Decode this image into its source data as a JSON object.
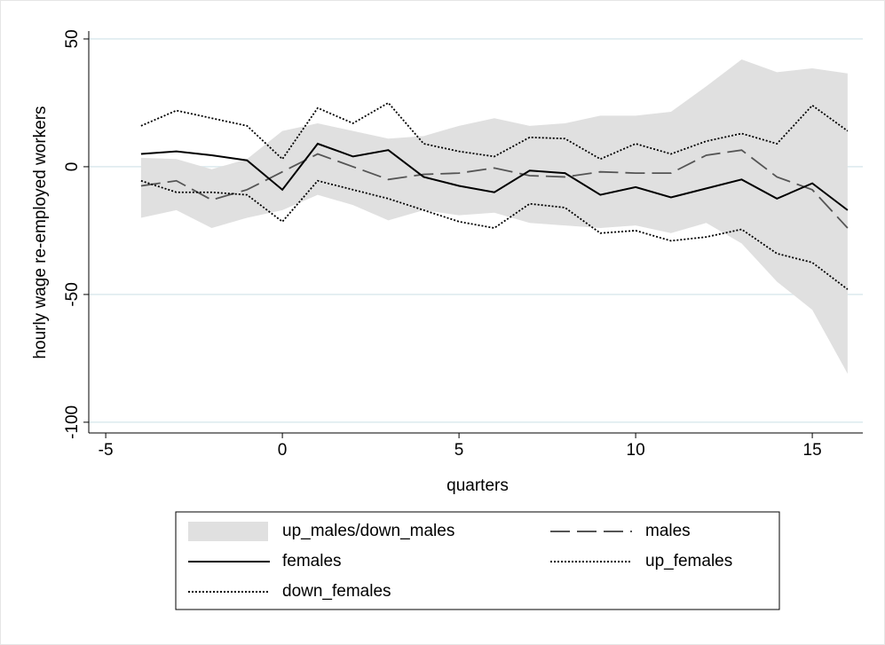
{
  "chart_data": {
    "type": "line",
    "x_label": "quarters",
    "y_label": "hourly wage re-employed workers",
    "x": [
      -4,
      -3,
      -2,
      -1,
      0,
      1,
      2,
      3,
      4,
      5,
      6,
      7,
      8,
      9,
      10,
      11,
      12,
      13,
      14,
      15,
      16
    ],
    "series": [
      {
        "name": "up_males/down_males",
        "type": "band",
        "color": "#e0e0e0",
        "upper": [
          3.5,
          3,
          -1,
          3,
          14,
          17,
          14,
          11,
          12,
          16,
          19,
          16,
          17,
          20,
          20,
          21.5,
          31.5,
          42,
          37,
          38.5,
          36.5
        ],
        "lower": [
          -20,
          -17,
          -24,
          -20,
          -17,
          -11,
          -15,
          -21,
          -17,
          -19,
          -18,
          -22,
          -23,
          -24,
          -23,
          -26,
          -22,
          -30,
          -45,
          -56,
          -81
        ]
      },
      {
        "name": "males",
        "type": "line",
        "color": "#555555",
        "dash": "long",
        "values": [
          -7.5,
          -5.5,
          -13,
          -9,
          -2,
          5,
          0,
          -5,
          -3,
          -2.5,
          -0.5,
          -3.5,
          -4,
          -2,
          -2.5,
          -2.5,
          4.5,
          6.5,
          -4,
          -9,
          -24
        ]
      },
      {
        "name": "females",
        "type": "line",
        "color": "#000000",
        "dash": "solid",
        "values": [
          5,
          6,
          4.5,
          2.5,
          -9,
          9,
          4,
          6.5,
          -4,
          -7.5,
          -10,
          -1.5,
          -2.5,
          -11,
          -8,
          -12,
          -8.5,
          -5,
          -12.5,
          -6.5,
          -17
        ]
      },
      {
        "name": "up_females",
        "type": "line",
        "color": "#000000",
        "dash": "dotted",
        "values": [
          16,
          22,
          19,
          16,
          3,
          23,
          17,
          25,
          9,
          6,
          4,
          11.5,
          11,
          3,
          9,
          5,
          10,
          13,
          9,
          24,
          14
        ]
      },
      {
        "name": "down_females",
        "type": "line",
        "color": "#000000",
        "dash": "dotted",
        "values": [
          -5.5,
          -10,
          -10,
          -11,
          -21.5,
          -5.5,
          -9,
          -12.5,
          -17,
          -21.5,
          -24,
          -14.5,
          -16,
          -26,
          -25,
          -29,
          -27.5,
          -24.5,
          -34,
          -37.5,
          -48
        ]
      }
    ],
    "xlim": [
      -5.48,
      16.43
    ],
    "xticks": [
      -5,
      0,
      5,
      10,
      15
    ],
    "ylim": [
      -104.2,
      53.1
    ],
    "yticks": [
      -100,
      -50,
      0,
      50
    ],
    "grid": true,
    "legend_position": "bottom",
    "legend_columns": 2
  }
}
